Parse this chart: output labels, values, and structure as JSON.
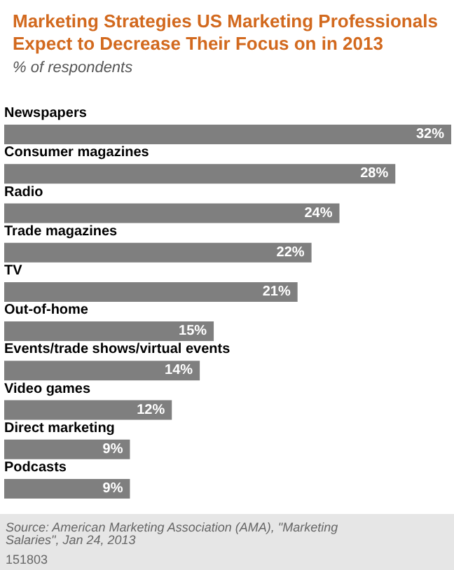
{
  "chart_data": {
    "type": "bar",
    "orientation": "horizontal",
    "title": "Marketing Strategies US Marketing Professionals Expect to Decrease Their Focus on in 2013",
    "subtitle": "% of respondents",
    "categories": [
      "Newspapers",
      "Consumer magazines",
      "Radio",
      "Trade magazines",
      "TV",
      "Out-of-home",
      "Events/trade shows/virtual events",
      "Video games",
      "Direct marketing",
      "Podcasts"
    ],
    "values": [
      32,
      28,
      24,
      22,
      21,
      15,
      14,
      12,
      9,
      9
    ],
    "value_labels": [
      "32%",
      "28%",
      "24%",
      "22%",
      "21%",
      "15%",
      "14%",
      "12%",
      "9%",
      "9%"
    ],
    "color": "#7f7f7f",
    "annotations": [
      "Source: American Marketing Association (AMA), \"Marketing Salaries\", Jan 24, 2013",
      "151803"
    ]
  }
}
